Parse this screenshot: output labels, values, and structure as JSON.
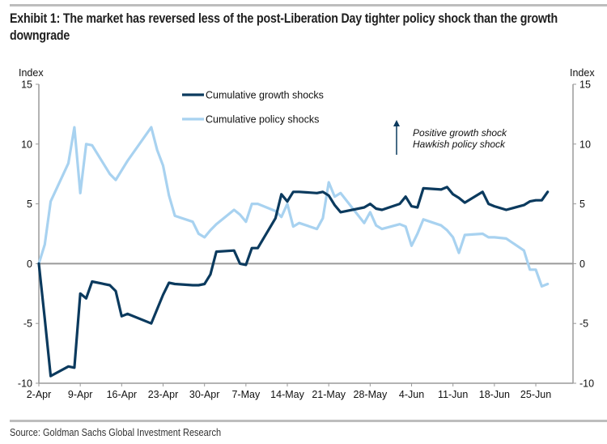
{
  "title": "Exhibit 1: The market has reversed less of the post-Liberation Day tighter policy shock than the growth downgrade",
  "source": "Source: Goldman Sachs Global Investment Research",
  "chart_data": {
    "type": "line",
    "title": "Exhibit 1: The market has reversed less of the post-Liberation Day tighter policy shock than the growth downgrade",
    "ylabel_left": "Index",
    "ylabel_right": "Index",
    "ylim": [
      -10,
      15
    ],
    "yticks": [
      15,
      10,
      5,
      0,
      -5,
      -10
    ],
    "ytick_labels": [
      "15",
      "10",
      "5",
      "0",
      "-5",
      "-10"
    ],
    "xlim": [
      "2-Apr",
      "2-Jul"
    ],
    "xticks": [
      "2-Apr",
      "9-Apr",
      "16-Apr",
      "23-Apr",
      "30-Apr",
      "7-May",
      "14-May",
      "21-May",
      "28-May",
      "4-Jun",
      "11-Jun",
      "18-Jun",
      "25-Jun"
    ],
    "grid": false,
    "legend": {
      "placement": "top-center",
      "entries": [
        "Cumulative growth shocks",
        "Cumulative policy shocks"
      ]
    },
    "annotation": {
      "arrow": "up",
      "lines": [
        "Positive growth shock",
        "Hawkish policy shock"
      ]
    },
    "colors": {
      "growth": "#0b3a5e",
      "policy": "#a8d2f0",
      "axis": "#9a9a9a"
    },
    "series": [
      {
        "name": "Cumulative growth shocks",
        "color": "#0b3a5e",
        "dates": [
          "2-Apr",
          "3-Apr",
          "4-Apr",
          "7-Apr",
          "8-Apr",
          "9-Apr",
          "10-Apr",
          "11-Apr",
          "14-Apr",
          "15-Apr",
          "16-Apr",
          "17-Apr",
          "21-Apr",
          "22-Apr",
          "23-Apr",
          "24-Apr",
          "25-Apr",
          "28-Apr",
          "29-Apr",
          "30-Apr",
          "1-May",
          "2-May",
          "5-May",
          "6-May",
          "7-May",
          "8-May",
          "9-May",
          "12-May",
          "13-May",
          "14-May",
          "15-May",
          "16-May",
          "19-May",
          "20-May",
          "21-May",
          "22-May",
          "23-May",
          "27-May",
          "28-May",
          "29-May",
          "30-May",
          "2-Jun",
          "3-Jun",
          "4-Jun",
          "5-Jun",
          "6-Jun",
          "9-Jun",
          "10-Jun",
          "11-Jun",
          "12-Jun",
          "13-Jun",
          "16-Jun",
          "17-Jun",
          "18-Jun",
          "20-Jun",
          "23-Jun",
          "24-Jun",
          "25-Jun",
          "26-Jun",
          "27-Jun"
        ],
        "values": [
          0,
          -4.6,
          -9.4,
          -8.6,
          -8.7,
          -2.5,
          -2.9,
          -1.5,
          -1.8,
          -2.3,
          -4.4,
          -4.2,
          -5.0,
          -3.8,
          -2.6,
          -1.6,
          -1.7,
          -1.8,
          -1.8,
          -1.7,
          -0.9,
          1.0,
          1.1,
          0.0,
          -0.1,
          1.3,
          1.3,
          3.8,
          5.8,
          5.2,
          6.0,
          6.0,
          5.9,
          6.0,
          5.7,
          4.9,
          4.3,
          4.7,
          5.0,
          4.6,
          4.5,
          5.0,
          5.6,
          4.8,
          4.7,
          6.3,
          6.2,
          6.4,
          5.8,
          5.5,
          5.1,
          6.0,
          5.0,
          4.8,
          4.5,
          4.9,
          5.2,
          5.3,
          5.3,
          6.0
        ]
      },
      {
        "name": "Cumulative policy shocks",
        "color": "#a8d2f0",
        "dates": [
          "2-Apr",
          "3-Apr",
          "4-Apr",
          "7-Apr",
          "8-Apr",
          "9-Apr",
          "10-Apr",
          "11-Apr",
          "14-Apr",
          "15-Apr",
          "16-Apr",
          "17-Apr",
          "21-Apr",
          "22-Apr",
          "23-Apr",
          "24-Apr",
          "25-Apr",
          "28-Apr",
          "29-Apr",
          "30-Apr",
          "1-May",
          "2-May",
          "5-May",
          "6-May",
          "7-May",
          "8-May",
          "9-May",
          "12-May",
          "13-May",
          "14-May",
          "15-May",
          "16-May",
          "19-May",
          "20-May",
          "21-May",
          "22-May",
          "23-May",
          "27-May",
          "28-May",
          "29-May",
          "30-May",
          "2-Jun",
          "3-Jun",
          "4-Jun",
          "5-Jun",
          "6-Jun",
          "9-Jun",
          "10-Jun",
          "11-Jun",
          "12-Jun",
          "13-Jun",
          "16-Jun",
          "17-Jun",
          "18-Jun",
          "20-Jun",
          "23-Jun",
          "24-Jun",
          "25-Jun",
          "26-Jun",
          "27-Jun"
        ],
        "values": [
          0,
          1.6,
          5.2,
          8.4,
          11.4,
          5.9,
          10.0,
          9.9,
          7.5,
          7.0,
          7.8,
          8.6,
          11.4,
          9.5,
          8.2,
          5.7,
          4.0,
          3.5,
          2.5,
          2.2,
          2.8,
          3.3,
          4.5,
          4.1,
          3.5,
          5.0,
          5.0,
          4.4,
          3.9,
          5.0,
          3.1,
          3.4,
          2.9,
          3.8,
          6.8,
          5.6,
          5.9,
          3.4,
          4.3,
          3.2,
          2.9,
          3.3,
          3.1,
          1.5,
          2.5,
          3.7,
          3.2,
          2.8,
          2.2,
          0.9,
          2.4,
          2.5,
          2.2,
          2.2,
          2.1,
          1.1,
          -0.5,
          -0.5,
          -1.9,
          -1.7
        ]
      }
    ]
  }
}
